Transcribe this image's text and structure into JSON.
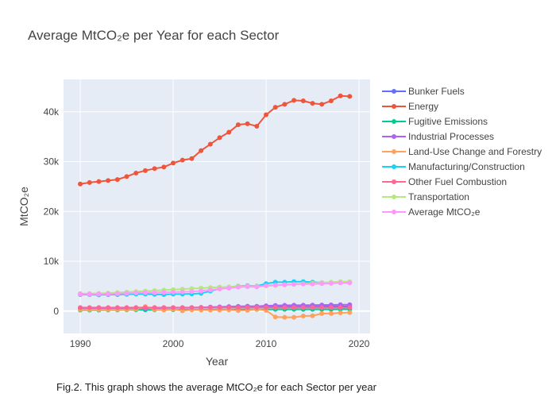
{
  "chart_data": {
    "type": "line",
    "title": "Average MtCO₂e per Year for each Sector",
    "xlabel": "Year",
    "ylabel": "MtCO₂e",
    "caption": "Fig.2. This graph shows the average MtCO₂e for each Sector per year",
    "xlim": [
      1988.2,
      2021.2
    ],
    "ylim": [
      -4500,
      46500
    ],
    "xticks": [
      1990,
      2000,
      2010,
      2020
    ],
    "yticks": [
      0,
      10000,
      20000,
      30000,
      40000
    ],
    "ytick_labels": [
      "0",
      "10k",
      "20k",
      "30k",
      "40k"
    ],
    "grid": true,
    "legend_position": "right",
    "x": [
      1990,
      1991,
      1992,
      1993,
      1994,
      1995,
      1996,
      1997,
      1998,
      1999,
      2000,
      2001,
      2002,
      2003,
      2004,
      2005,
      2006,
      2007,
      2008,
      2009,
      2010,
      2011,
      2012,
      2013,
      2014,
      2015,
      2016,
      2017,
      2018,
      2019
    ],
    "series": [
      {
        "name": "Bunker Fuels",
        "color": "#636efa",
        "values": [
          600,
          600,
          600,
          600,
          600,
          620,
          650,
          660,
          650,
          650,
          650,
          650,
          660,
          680,
          720,
          740,
          770,
          790,
          810,
          780,
          800,
          850,
          850,
          860,
          870,
          880,
          890,
          920,
          930,
          920
        ]
      },
      {
        "name": "Energy",
        "color": "#EF553B",
        "values": [
          25500,
          25800,
          26000,
          26200,
          26400,
          27000,
          27700,
          28200,
          28600,
          28900,
          29700,
          30300,
          30600,
          32200,
          33500,
          34800,
          35900,
          37400,
          37600,
          37100,
          39400,
          40900,
          41500,
          42300,
          42200,
          41700,
          41500,
          42200,
          43200,
          43100
        ]
      },
      {
        "name": "Fugitive Emissions",
        "color": "#00cc96",
        "values": [
          200,
          200,
          200,
          220,
          230,
          240,
          250,
          250,
          250,
          260,
          270,
          270,
          280,
          290,
          300,
          310,
          310,
          320,
          320,
          320,
          330,
          340,
          340,
          350,
          350,
          350,
          350,
          350,
          360,
          360
        ]
      },
      {
        "name": "Industrial Processes",
        "color": "#ab63fa",
        "values": [
          500,
          500,
          500,
          520,
          530,
          550,
          560,
          580,
          600,
          620,
          650,
          670,
          700,
          740,
          790,
          840,
          890,
          940,
          970,
          950,
          1050,
          1120,
          1150,
          1170,
          1180,
          1200,
          1220,
          1240,
          1280,
          1280
        ]
      },
      {
        "name": "Land-Use Change and Forestry",
        "color": "#FFA15A",
        "values": [
          300,
          300,
          300,
          300,
          300,
          300,
          350,
          900,
          300,
          200,
          350,
          50,
          250,
          200,
          200,
          200,
          250,
          100,
          150,
          350,
          150,
          -1200,
          -1250,
          -1250,
          -1000,
          -950,
          -500,
          -500,
          -350,
          -300
        ]
      },
      {
        "name": "Manufacturing/Construction",
        "color": "#19d3f3",
        "values": [
          3300,
          3300,
          3250,
          3300,
          3300,
          3350,
          3400,
          3400,
          3350,
          3300,
          3400,
          3400,
          3450,
          3550,
          4000,
          4500,
          4800,
          5000,
          5100,
          5000,
          5500,
          5800,
          5800,
          5900,
          5900,
          5800,
          5700,
          5700,
          5800,
          5800
        ]
      },
      {
        "name": "Other Fuel Combustion",
        "color": "#FF6692",
        "values": [
          700,
          700,
          700,
          700,
          700,
          700,
          700,
          700,
          700,
          700,
          700,
          700,
          700,
          700,
          700,
          700,
          700,
          700,
          700,
          700,
          700,
          700,
          700,
          700,
          700,
          700,
          700,
          700,
          700,
          700
        ]
      },
      {
        "name": "Transportation",
        "color": "#B6E880",
        "values": [
          3500,
          3500,
          3550,
          3600,
          3700,
          3800,
          3900,
          4000,
          4100,
          4200,
          4300,
          4400,
          4500,
          4600,
          4700,
          4800,
          4850,
          4950,
          5000,
          4950,
          5050,
          5150,
          5250,
          5350,
          5500,
          5600,
          5700,
          5800,
          5900,
          5900
        ]
      },
      {
        "name": "Average MtCO₂e",
        "color": "#FF97FF",
        "values": [
          3400,
          3400,
          3400,
          3450,
          3500,
          3550,
          3650,
          3700,
          3700,
          3750,
          3800,
          3850,
          3900,
          4050,
          4250,
          4450,
          4600,
          4800,
          4900,
          4850,
          5100,
          5200,
          5300,
          5400,
          5450,
          5450,
          5500,
          5550,
          5650,
          5650
        ]
      }
    ]
  }
}
